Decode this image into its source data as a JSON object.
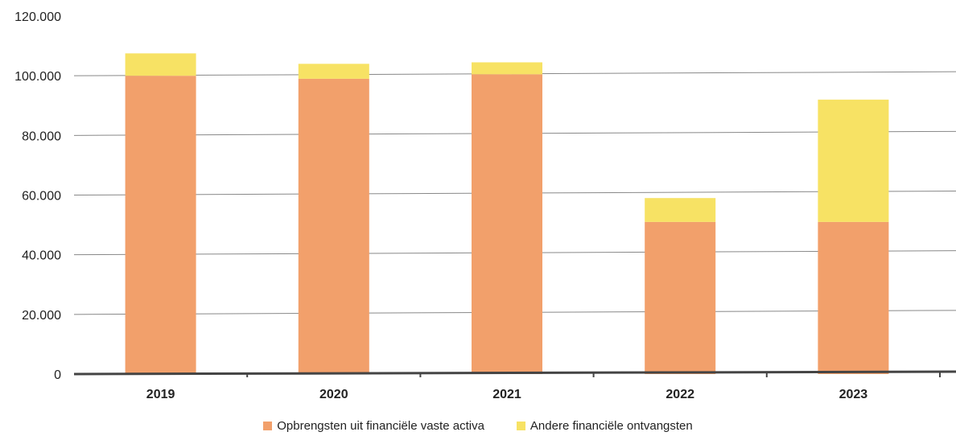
{
  "chart_data": {
    "type": "bar",
    "stacked": true,
    "categories": [
      "2019",
      "2020",
      "2021",
      "2022",
      "2023"
    ],
    "series": [
      {
        "name": "Opbrengsten uit financiële vaste activa",
        "values": [
          100000,
          99000,
          100500,
          51000,
          51000
        ],
        "color": "#f2a06b"
      },
      {
        "name": "Andere financiële ontvangsten",
        "values": [
          7500,
          5000,
          4000,
          8000,
          41000
        ],
        "color": "#f7e264"
      }
    ],
    "ytick_labels": [
      "0",
      "20.000",
      "40.000",
      "60.000",
      "80.000",
      "100.000",
      "120.000"
    ],
    "ylim": [
      0,
      120000
    ],
    "grid": true,
    "legend_position": "bottom"
  }
}
